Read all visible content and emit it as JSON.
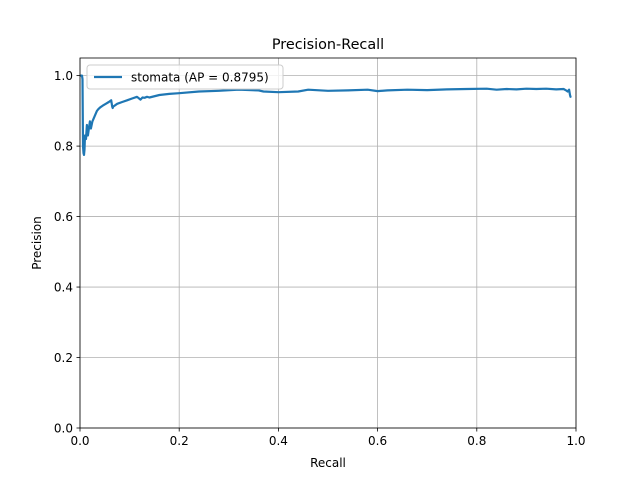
{
  "chart_data": {
    "type": "line",
    "title": "Precision-Recall",
    "xlabel": "Recall",
    "ylabel": "Precision",
    "xlim": [
      0,
      1
    ],
    "ylim": [
      0,
      1.05
    ],
    "grid": true,
    "legend_position": "top-left",
    "x_ticks": [
      "0.0",
      "0.2",
      "0.4",
      "0.6",
      "0.8",
      "1.0"
    ],
    "y_ticks": [
      "0.0",
      "0.2",
      "0.4",
      "0.6",
      "0.8",
      "1.0"
    ],
    "series": [
      {
        "name": "stomata (AP = 0.8795)",
        "color": "#1f77b4",
        "x": [
          0.002,
          0.004,
          0.005,
          0.006,
          0.007,
          0.008,
          0.009,
          0.01,
          0.012,
          0.014,
          0.016,
          0.018,
          0.02,
          0.022,
          0.025,
          0.028,
          0.031,
          0.034,
          0.037,
          0.041,
          0.046,
          0.052,
          0.058,
          0.063,
          0.065,
          0.066,
          0.067,
          0.075,
          0.085,
          0.095,
          0.105,
          0.115,
          0.122,
          0.126,
          0.13,
          0.135,
          0.14,
          0.16,
          0.18,
          0.2,
          0.24,
          0.28,
          0.32,
          0.36,
          0.37,
          0.4,
          0.44,
          0.46,
          0.5,
          0.54,
          0.58,
          0.6,
          0.62,
          0.66,
          0.7,
          0.74,
          0.78,
          0.82,
          0.84,
          0.86,
          0.88,
          0.9,
          0.92,
          0.94,
          0.96,
          0.975,
          0.98,
          0.983,
          0.986,
          0.988,
          0.989
        ],
        "y": [
          1.0,
          1.0,
          0.99,
          0.8,
          0.78,
          0.775,
          0.79,
          0.83,
          0.82,
          0.86,
          0.83,
          0.85,
          0.87,
          0.85,
          0.87,
          0.88,
          0.89,
          0.9,
          0.905,
          0.91,
          0.915,
          0.92,
          0.925,
          0.93,
          0.912,
          0.908,
          0.912,
          0.92,
          0.925,
          0.93,
          0.935,
          0.94,
          0.932,
          0.938,
          0.937,
          0.94,
          0.938,
          0.945,
          0.948,
          0.95,
          0.955,
          0.957,
          0.96,
          0.958,
          0.955,
          0.953,
          0.955,
          0.96,
          0.957,
          0.958,
          0.96,
          0.956,
          0.958,
          0.96,
          0.959,
          0.961,
          0.962,
          0.963,
          0.96,
          0.962,
          0.961,
          0.963,
          0.962,
          0.963,
          0.961,
          0.962,
          0.958,
          0.955,
          0.96,
          0.945,
          0.94
        ]
      }
    ]
  }
}
